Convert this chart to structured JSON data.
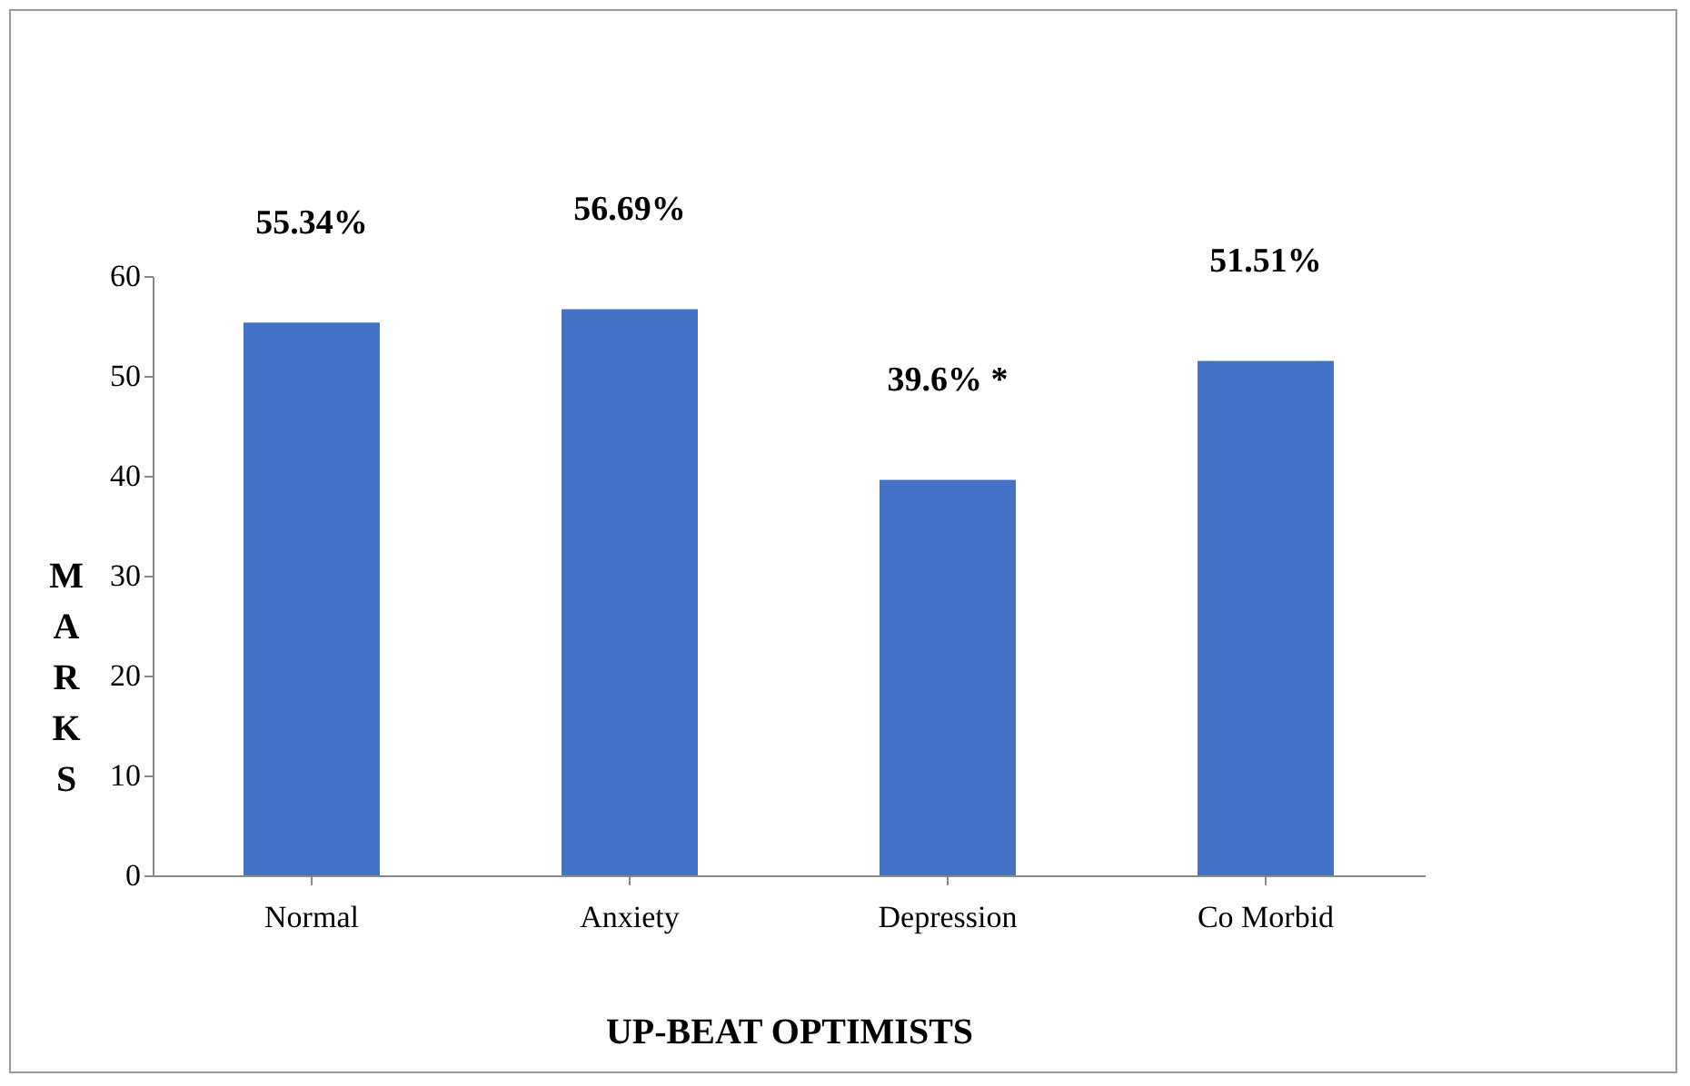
{
  "chart_data": {
    "type": "bar",
    "xlabel": "UP-BEAT OPTIMISTS",
    "ylabel": "MARKS",
    "categories": [
      "Normal",
      "Anxiety",
      "Depression",
      "Co Morbid"
    ],
    "values": [
      55.34,
      56.69,
      39.6,
      51.51
    ],
    "value_labels": [
      "55.34%",
      "56.69%",
      "39.6% *",
      "51.51%"
    ],
    "color": "#4472c4",
    "ylim": [
      0,
      60
    ],
    "yticks": [
      0,
      10,
      20,
      30,
      40,
      50,
      60
    ],
    "grid": false
  }
}
